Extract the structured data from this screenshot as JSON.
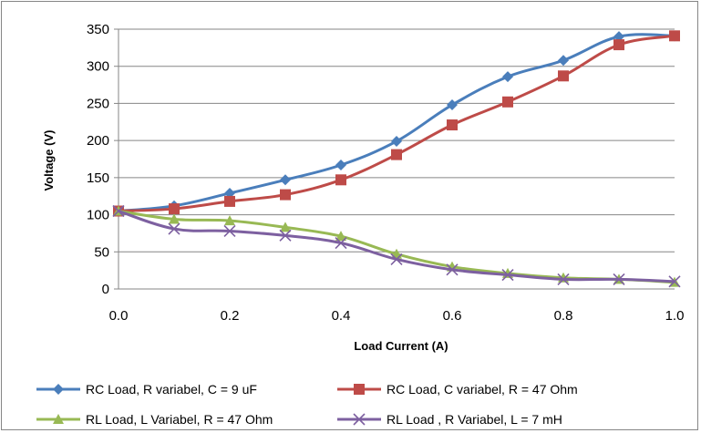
{
  "chart_data": {
    "type": "line",
    "xlabel": "Load Current (A)",
    "ylabel": "Voltage (V)",
    "xlim": [
      0.0,
      1.0
    ],
    "ylim": [
      0,
      350
    ],
    "x_ticks": [
      "0.0",
      "0.2",
      "0.4",
      "0.6",
      "0.8",
      "1.0"
    ],
    "y_ticks": [
      "0",
      "50",
      "100",
      "150",
      "200",
      "250",
      "300",
      "350"
    ],
    "grid": "horizontal",
    "legend_position": "bottom",
    "series": [
      {
        "name": "RC Load,  R variabel, C = 9 uF",
        "color": "#4A7EBB",
        "marker": "diamond",
        "points": [
          [
            0.0,
            105
          ],
          [
            0.1,
            112
          ],
          [
            0.2,
            129
          ],
          [
            0.3,
            147
          ],
          [
            0.4,
            167
          ],
          [
            0.5,
            199
          ],
          [
            0.6,
            248
          ],
          [
            0.7,
            286
          ],
          [
            0.8,
            308
          ],
          [
            0.9,
            340
          ],
          [
            1.0,
            341
          ]
        ]
      },
      {
        "name": "RC Load, C variabel, R = 47 Ohm",
        "color": "#BE4B48",
        "marker": "square",
        "points": [
          [
            0.0,
            105
          ],
          [
            0.1,
            108
          ],
          [
            0.2,
            118
          ],
          [
            0.3,
            127
          ],
          [
            0.4,
            147
          ],
          [
            0.5,
            181
          ],
          [
            0.6,
            221
          ],
          [
            0.7,
            252
          ],
          [
            0.8,
            287
          ],
          [
            0.9,
            329
          ],
          [
            1.0,
            341
          ]
        ]
      },
      {
        "name": "RL Load,  L Variabel, R = 47 Ohm",
        "color": "#98B954",
        "marker": "triangle",
        "points": [
          [
            0.0,
            105
          ],
          [
            0.1,
            94
          ],
          [
            0.2,
            92
          ],
          [
            0.3,
            83
          ],
          [
            0.4,
            71
          ],
          [
            0.5,
            47
          ],
          [
            0.6,
            30
          ],
          [
            0.7,
            21
          ],
          [
            0.8,
            15
          ],
          [
            0.9,
            13
          ],
          [
            1.0,
            9
          ]
        ]
      },
      {
        "name": "RL Load , R Variabel,  L = 7 mH",
        "color": "#7D60A0",
        "marker": "x",
        "points": [
          [
            0.0,
            105
          ],
          [
            0.1,
            81
          ],
          [
            0.2,
            78
          ],
          [
            0.3,
            72
          ],
          [
            0.4,
            62
          ],
          [
            0.5,
            40
          ],
          [
            0.6,
            26
          ],
          [
            0.7,
            19
          ],
          [
            0.8,
            13
          ],
          [
            0.9,
            13
          ],
          [
            1.0,
            10
          ]
        ]
      }
    ]
  }
}
